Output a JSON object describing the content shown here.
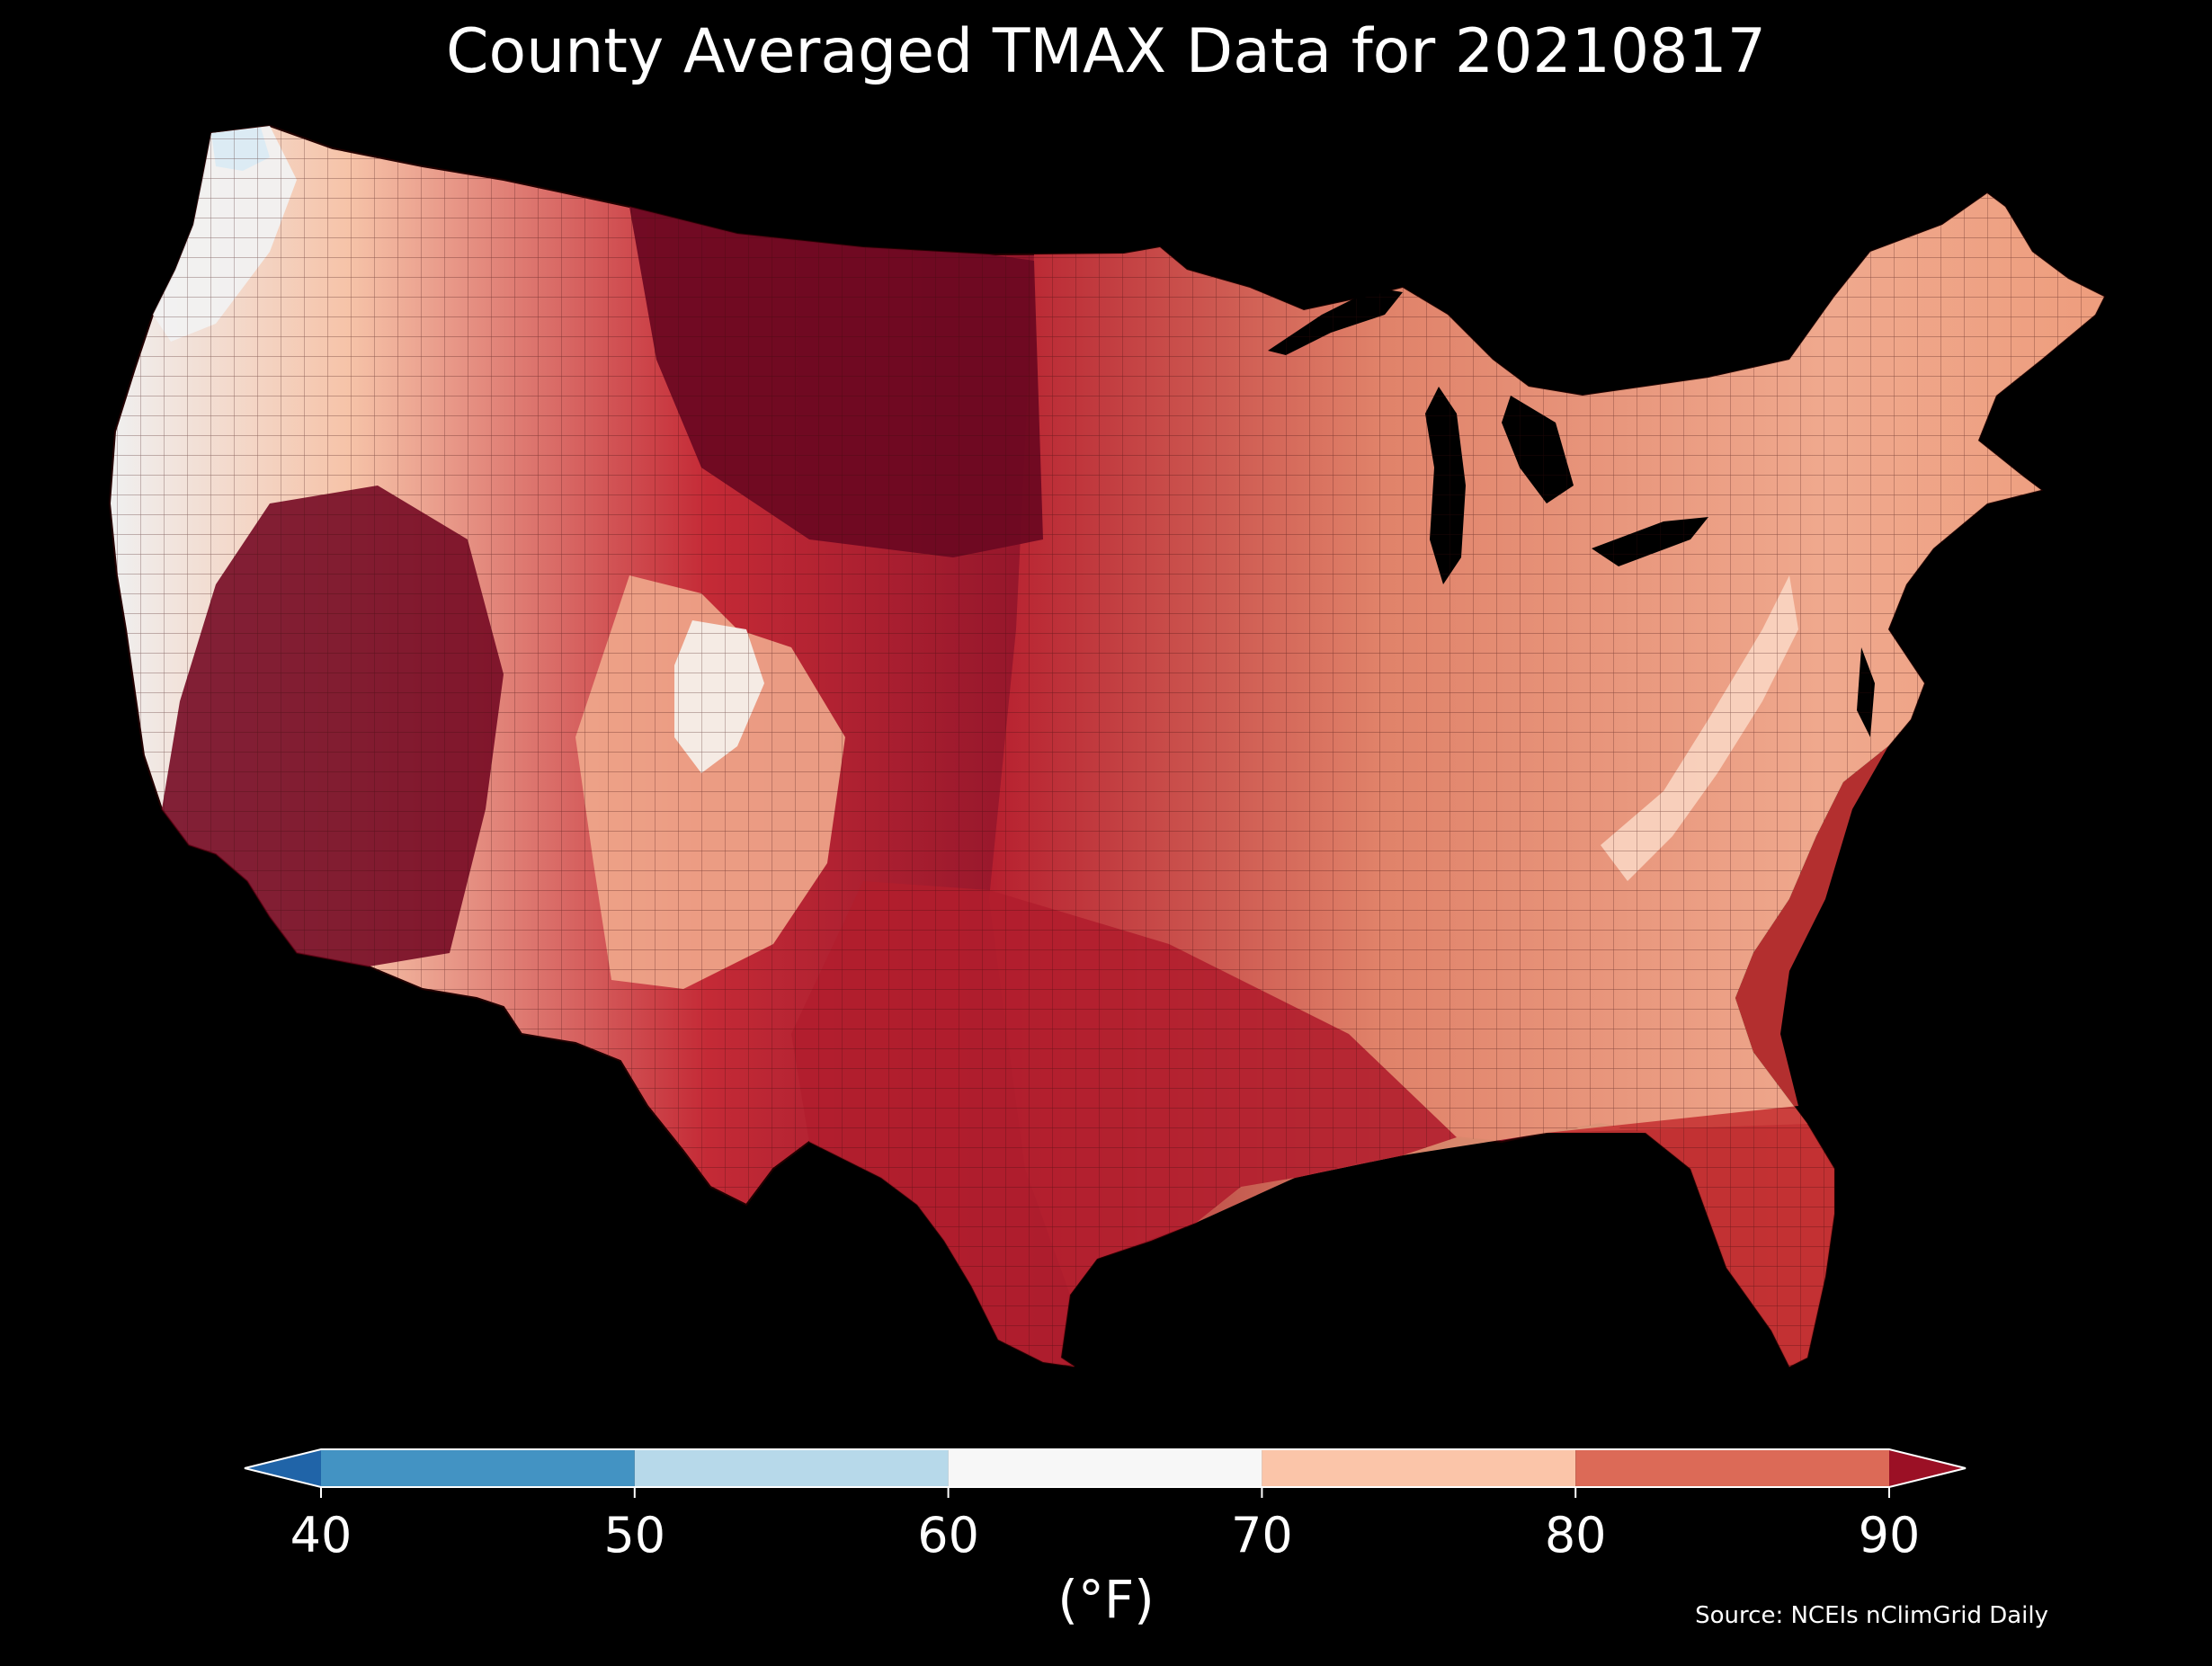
{
  "title": "County Averaged TMAX Data for 20210817",
  "colorbar": {
    "label": "(°F)",
    "ticks": [
      "40",
      "50",
      "60",
      "70",
      "80",
      "90"
    ],
    "extend": "both",
    "bins": [
      {
        "from": 40,
        "to": 50,
        "color": "#4393c3"
      },
      {
        "from": 50,
        "to": 60,
        "color": "#b7d9ea"
      },
      {
        "from": 60,
        "to": 70,
        "color": "#f7f7f7"
      },
      {
        "from": 70,
        "to": 80,
        "color": "#fbc5a9"
      },
      {
        "from": 80,
        "to": 90,
        "color": "#dc6a57"
      }
    ],
    "under_color": "#2064a8",
    "over_color": "#9b1025"
  },
  "source": "Source: NCEIs nClimGrid Daily",
  "regions": [
    {
      "name": "pacific-northwest-coast",
      "color": "#f5f5f5"
    },
    {
      "name": "northern-plains",
      "color": "#6d0822"
    },
    {
      "name": "great-basin-california",
      "color": "#7a0b25"
    },
    {
      "name": "intermountain-west",
      "color": "#c42a36"
    },
    {
      "name": "colorado-rockies",
      "color": "#f3c0a6"
    },
    {
      "name": "southern-plains",
      "color": "#b8202f"
    },
    {
      "name": "midwest",
      "color": "#e88c6f"
    },
    {
      "name": "northeast",
      "color": "#f6b596"
    },
    {
      "name": "southeast",
      "color": "#df7a60"
    },
    {
      "name": "gulf-coast-florida",
      "color": "#c53534"
    }
  ]
}
